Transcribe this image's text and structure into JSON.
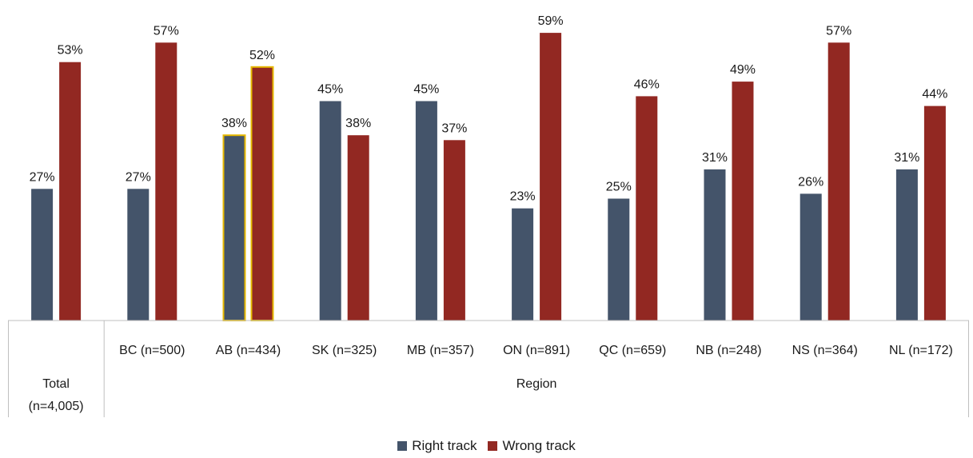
{
  "chart_data": {
    "type": "bar",
    "categories": [
      "Total (n=4,005)",
      "BC (n=500)",
      "AB (n=434)",
      "SK (n=325)",
      "MB (n=357)",
      "ON (n=891)",
      "QC (n=659)",
      "NB (n=248)",
      "NS (n=364)",
      "NL (n=172)"
    ],
    "group_label": "Region",
    "total_label_lines": [
      "Total",
      "(n=4,005)"
    ],
    "series": [
      {
        "name": "Right track",
        "color": "#44546A",
        "values": [
          27,
          27,
          38,
          45,
          45,
          23,
          25,
          31,
          26,
          31
        ]
      },
      {
        "name": "Wrong track",
        "color": "#922822",
        "values": [
          53,
          57,
          52,
          38,
          37,
          59,
          46,
          49,
          57,
          44
        ]
      }
    ],
    "value_suffix": "%",
    "highlighted_category": "AB (n=434)",
    "highlight_color": "#E6B800",
    "ylim": [
      0,
      62
    ],
    "legend_position": "bottom",
    "grid": false
  }
}
